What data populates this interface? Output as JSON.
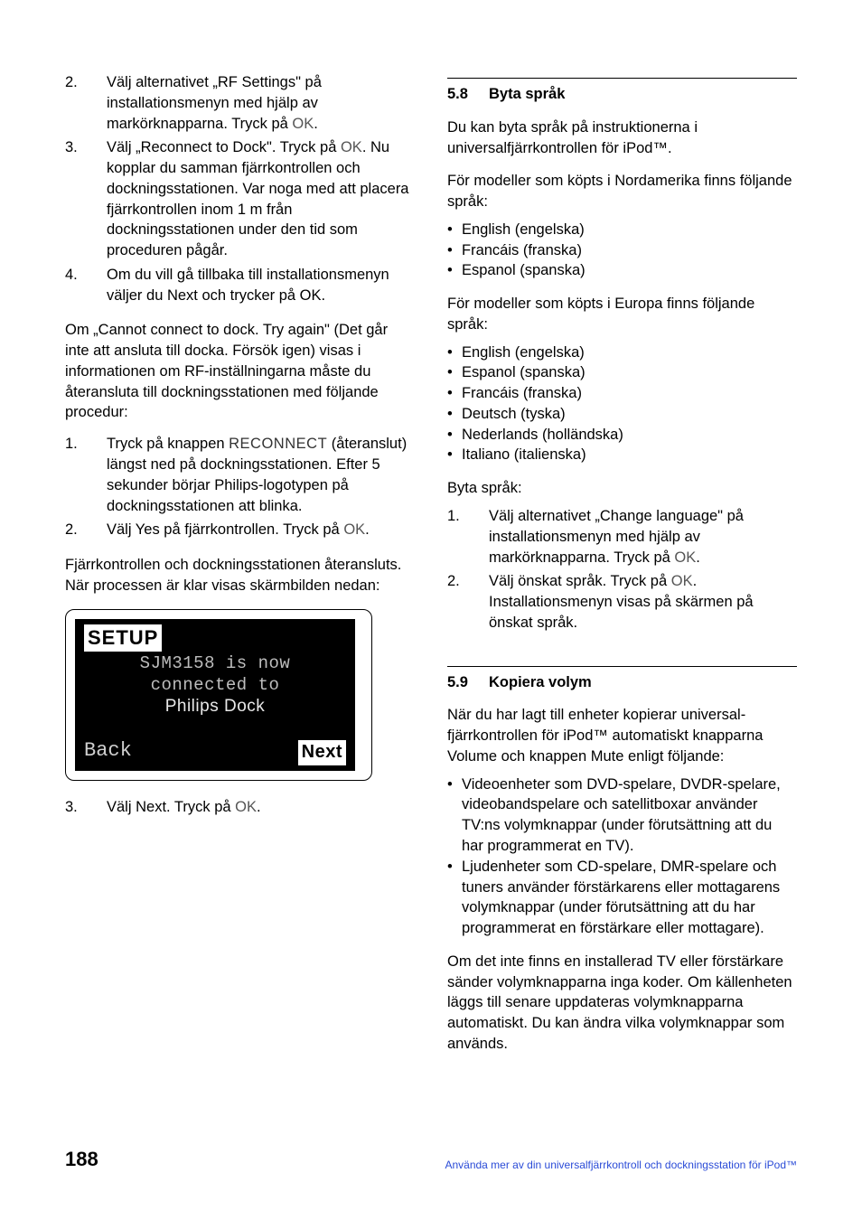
{
  "left_col": {
    "items_top": [
      {
        "num": "2.",
        "text_parts": [
          "Välj alternativet „RF Settings\" på installationsmenyn med hjälp av markörknapparna. Tryck på ",
          {
            "code": "OK"
          },
          "."
        ]
      },
      {
        "num": "3.",
        "text_parts": [
          "Välj „Reconnect to Dock\". Tryck på ",
          {
            "code": "OK"
          },
          ". Nu kopplar du samman fjärrkontrollen och dockningsstationen. Var noga med att placera fjärrkontrollen inom 1 m från dockningsstationen under den tid som proceduren pågår."
        ]
      },
      {
        "num": "4.",
        "text_parts": [
          "Om du vill gå tillbaka till installationsmenyn väljer du Next och trycker på OK."
        ]
      }
    ],
    "para1": "Om „Cannot connect to dock. Try again\" (Det går inte att ansluta till docka. Försök igen) visas i informationen om RF-inställningarna måste du återansluta till dockningsstationen med följande procedur:",
    "items_mid": [
      {
        "num": "1.",
        "text_parts": [
          "Tryck på knappen ",
          {
            "sc": "RECONNECT"
          },
          " (återanslut) längst ned på dockningsstationen. Efter 5 sekunder börjar Philips-logotypen på dockningsstationen att blinka."
        ]
      },
      {
        "num": "2.",
        "text_parts": [
          "Välj Yes på fjärrkontrollen. Tryck på ",
          {
            "code": "OK"
          },
          "."
        ]
      }
    ],
    "para2": "Fjärrkontrollen och dockningsstationen återansluts. När processen är klar visas skärmbilden nedan:",
    "screenshot": {
      "setup": "SETUP",
      "line1": "SJM3158 is now",
      "line2": "connected to",
      "line3": "Philips Dock",
      "back": "Back",
      "next": "Next"
    },
    "items_bottom": [
      {
        "num": "3.",
        "text_parts": [
          "Välj Next. Tryck på ",
          {
            "code": "OK"
          },
          "."
        ]
      }
    ]
  },
  "right_col": {
    "sec58": {
      "num": "5.8",
      "title": "Byta språk"
    },
    "para58a": "Du kan byta språk på instruktionerna i universalfjärrkontrollen för iPod™.",
    "para58b": "För modeller som köpts i Nordamerika finns följande språk:",
    "langs_na": [
      "English (engelska)",
      "Francáis (franska)",
      "Espanol (spanska)"
    ],
    "para58c": "För modeller som köpts i Europa finns följande språk:",
    "langs_eu": [
      "English (engelska)",
      "Espanol (spanska)",
      "Francáis (franska)",
      "Deutsch (tyska)",
      "Nederlands (holländska)",
      "Italiano (italienska)"
    ],
    "byta_label": "Byta språk:",
    "byta_items": [
      {
        "num": "1.",
        "text_parts": [
          "Välj alternativet „Change language\" på installationsmenyn med hjälp av markörknapparna. Tryck på ",
          {
            "code": "OK"
          },
          "."
        ]
      },
      {
        "num": "2.",
        "text_parts": [
          "Välj önskat språk. Tryck på ",
          {
            "code": "OK"
          },
          ". Installationsmenyn visas på skärmen på önskat språk."
        ]
      }
    ],
    "sec59": {
      "num": "5.9",
      "title": "Kopiera volym"
    },
    "para59a_parts": [
      "När du har lagt till enheter kopierar ",
      {
        "b": "universal"
      },
      "-fjärrkontrollen för iPod™ automatiskt knapparna Volume och knappen Mute enligt följande:"
    ],
    "vol_bullets": [
      "Videoenheter som DVD-spelare, DVDR-spelare, videobandspelare och satellitboxar använder TV:ns volymknappar (under förutsättning att du har programmerat en TV).",
      "Ljudenheter som CD-spelare, DMR-spelare och tuners använder förstärkarens eller mottagarens volymknappar (under förutsättning att du har programmerat en förstärkare eller mottagare)."
    ],
    "para59b": "Om det inte finns en installerad TV eller förstärkare sänder volymknapparna inga koder. Om källenheten läggs till senare uppdateras volymknapparna automatiskt. Du kan ändra vilka volymknappar som används."
  },
  "footer": {
    "pagenum": "188",
    "note": "Använda mer av din universalfjärrkontroll och dockningsstation för iPod™"
  }
}
